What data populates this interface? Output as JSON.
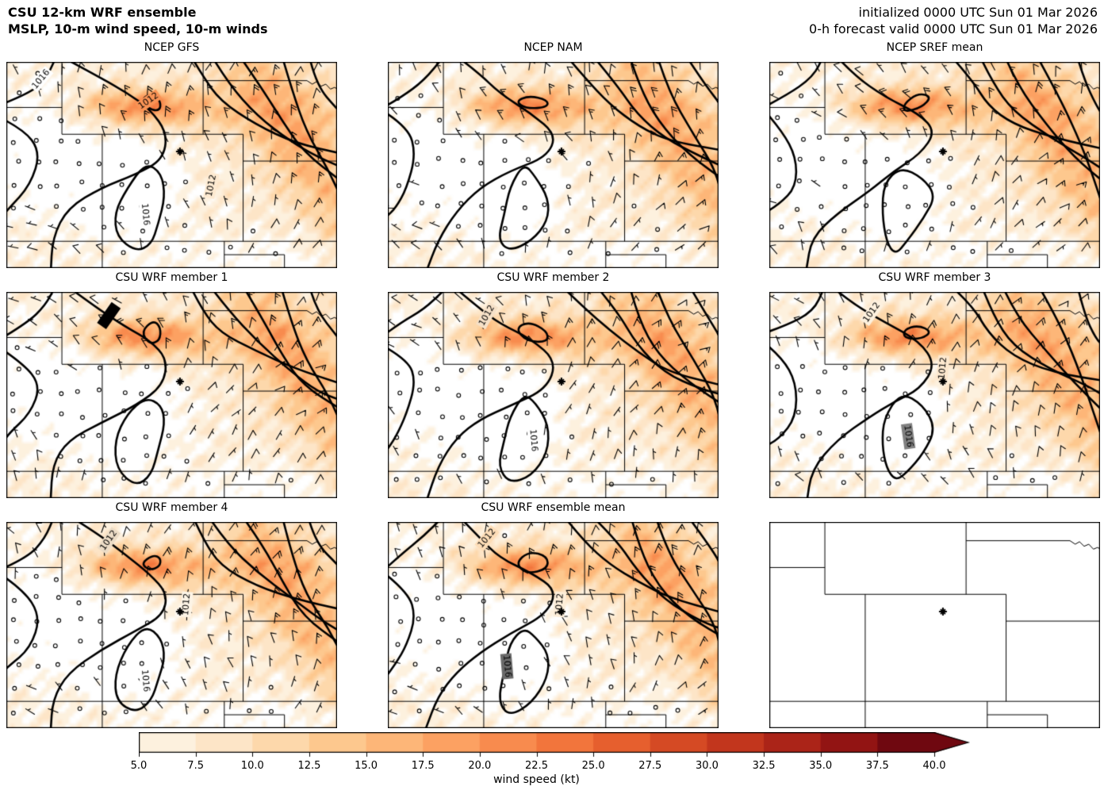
{
  "header": {
    "title_line1": "CSU 12-km WRF ensemble",
    "title_line2": "MSLP, 10-m wind speed, 10-m winds",
    "init_line": "initialized 0000 UTC Sun 01 Mar 2026",
    "valid_line": "0-h forecast valid 0000 UTC Sun 01 Mar 2026"
  },
  "chart_data": {
    "type": "heatmap",
    "subtype": "ensemble-forecast-map-grid",
    "grid": {
      "rows": 3,
      "cols": 3
    },
    "panels": [
      {
        "title": "NCEP GFS",
        "blank": false,
        "seed": 1,
        "labels": [
          {
            "t": "1016",
            "x": 0.105,
            "y": 0.085,
            "r": -50
          },
          {
            "t": "1012",
            "x": 0.43,
            "y": 0.19,
            "r": -35
          },
          {
            "t": "1012",
            "x": 0.62,
            "y": 0.6,
            "r": -78
          },
          {
            "t": "1016",
            "x": 0.42,
            "y": 0.74,
            "r": 85
          }
        ]
      },
      {
        "title": "NCEP NAM",
        "blank": false,
        "seed": 2,
        "labels": []
      },
      {
        "title": "NCEP SREF mean",
        "blank": false,
        "seed": 3,
        "labels": []
      },
      {
        "title": "CSU WRF member 1",
        "blank": false,
        "seed": 4,
        "labels": [
          {
            "t": "1012",
            "x": 0.31,
            "y": 0.115,
            "r": -55
          }
        ]
      },
      {
        "title": "CSU WRF member 2",
        "blank": false,
        "seed": 5,
        "labels": [
          {
            "t": "1012",
            "x": 0.3,
            "y": 0.115,
            "r": -60
          },
          {
            "t": "1016",
            "x": 0.44,
            "y": 0.72,
            "r": 85
          }
        ]
      },
      {
        "title": "CSU WRF member 3",
        "blank": false,
        "seed": 6,
        "labels": [
          {
            "t": "1012",
            "x": 0.31,
            "y": 0.1,
            "r": -55
          },
          {
            "t": "1012",
            "x": 0.525,
            "y": 0.37,
            "r": -85
          },
          {
            "t": "1016",
            "x": 0.42,
            "y": 0.7,
            "r": 82
          }
        ]
      },
      {
        "title": "CSU WRF member 4",
        "blank": false,
        "seed": 7,
        "labels": [
          {
            "t": "1012",
            "x": 0.31,
            "y": 0.09,
            "r": -55
          },
          {
            "t": "1012",
            "x": 0.545,
            "y": 0.4,
            "r": -85
          },
          {
            "t": "1016",
            "x": 0.42,
            "y": 0.77,
            "r": 85
          }
        ]
      },
      {
        "title": "CSU WRF ensemble mean",
        "blank": false,
        "seed": 8,
        "labels": [
          {
            "t": "1012",
            "x": 0.3,
            "y": 0.08,
            "r": -50
          },
          {
            "t": "1012",
            "x": 0.52,
            "y": 0.4,
            "r": -85
          },
          {
            "t": "1016",
            "x": 0.36,
            "y": 0.7,
            "r": 85
          }
        ]
      },
      {
        "title": "",
        "blank": true,
        "seed": 9,
        "labels": []
      }
    ],
    "isobar_values_visible": [
      "1012",
      "1016"
    ],
    "marker": {
      "symbol": "+",
      "x": 0.525,
      "y": 0.435
    },
    "colorbar": {
      "label": "wind speed (kt)",
      "min": 5,
      "max": 40,
      "interval": 2.5,
      "extend": "max",
      "ticks": [
        "5.0",
        "7.5",
        "10.0",
        "12.5",
        "15.0",
        "17.5",
        "20.0",
        "22.5",
        "25.0",
        "27.5",
        "30.0",
        "32.5",
        "35.0",
        "37.5",
        "40.0"
      ],
      "colors": [
        "#fdf1de",
        "#fde5c7",
        "#fdd8ab",
        "#fdc88e",
        "#fdb678",
        "#fca162",
        "#f88b4e",
        "#f2753c",
        "#e65f2e",
        "#d54a24",
        "#c2361d",
        "#ab2418",
        "#921413",
        "#6f0810"
      ]
    },
    "map": {
      "borders": [
        [
          [
            0.168,
            0
          ],
          [
            0.168,
            0.351
          ]
        ],
        [
          [
            0,
            0.221
          ],
          [
            0.168,
            0.221
          ]
        ],
        [
          [
            0.168,
            0.351
          ],
          [
            0.716,
            0.351
          ]
        ],
        [
          [
            0.29,
            0.351
          ],
          [
            0.29,
            1.0
          ]
        ],
        [
          [
            0.595,
            0
          ],
          [
            0.595,
            0.351
          ]
        ],
        [
          [
            0.595,
            0.091
          ],
          [
            0.909,
            0.091
          ]
        ],
        [
          [
            0.909,
            0.091
          ],
          [
            0.925,
            0.108
          ],
          [
            0.938,
            0.096
          ],
          [
            0.952,
            0.118
          ],
          [
            0.966,
            0.108
          ],
          [
            0.98,
            0.132
          ],
          [
            0.992,
            0.124
          ],
          [
            1.0,
            0.13
          ]
        ],
        [
          [
            0.716,
            0.351
          ],
          [
            0.716,
            0.87
          ]
        ],
        [
          [
            0.716,
            0.481
          ],
          [
            1.0,
            0.481
          ]
        ],
        [
          [
            0,
            0.87
          ],
          [
            1.0,
            0.87
          ]
        ],
        [
          [
            0.659,
            0.87
          ],
          [
            0.659,
            1.0
          ]
        ],
        [
          [
            0.659,
            0.935
          ],
          [
            0.841,
            0.935
          ]
        ],
        [
          [
            0.841,
            0.935
          ],
          [
            0.841,
            1.0
          ]
        ]
      ],
      "isobars": [
        {
          "pts": [
            [
              0.55,
              -0.02
            ],
            [
              0.6,
              0.08
            ],
            [
              0.66,
              0.2
            ],
            [
              0.75,
              0.3
            ],
            [
              0.86,
              0.38
            ],
            [
              1.02,
              0.44
            ]
          ],
          "closed": false
        },
        {
          "pts": [
            [
              0.63,
              -0.02
            ],
            [
              0.68,
              0.1
            ],
            [
              0.75,
              0.25
            ],
            [
              0.85,
              0.38
            ],
            [
              0.95,
              0.47
            ],
            [
              1.02,
              0.52
            ]
          ],
          "closed": false
        },
        {
          "pts": [
            [
              0.72,
              -0.02
            ],
            [
              0.76,
              0.12
            ],
            [
              0.83,
              0.3
            ],
            [
              0.91,
              0.45
            ],
            [
              1.02,
              0.58
            ]
          ],
          "closed": false
        },
        {
          "pts": [
            [
              0.82,
              -0.02
            ],
            [
              0.86,
              0.14
            ],
            [
              0.92,
              0.34
            ],
            [
              0.98,
              0.52
            ],
            [
              1.02,
              0.72
            ]
          ],
          "closed": false
        },
        {
          "pts": [
            [
              0.92,
              -0.02
            ],
            [
              0.95,
              0.1
            ],
            [
              1.0,
              0.22
            ],
            [
              1.02,
              0.28
            ]
          ],
          "closed": false
        },
        {
          "pts": [
            [
              0.2,
              -0.02
            ],
            [
              0.27,
              0.07
            ],
            [
              0.35,
              0.16
            ],
            [
              0.44,
              0.24
            ],
            [
              0.5,
              0.34
            ],
            [
              0.47,
              0.46
            ],
            [
              0.38,
              0.54
            ],
            [
              0.29,
              0.62
            ],
            [
              0.2,
              0.72
            ],
            [
              0.14,
              0.85
            ],
            [
              0.12,
              1.02
            ]
          ],
          "closed": false
        },
        {
          "pts": [
            [
              0.41,
              0.5
            ],
            [
              0.46,
              0.55
            ],
            [
              0.49,
              0.65
            ],
            [
              0.47,
              0.77
            ],
            [
              0.43,
              0.88
            ],
            [
              0.38,
              0.93
            ],
            [
              0.34,
              0.86
            ],
            [
              0.34,
              0.73
            ],
            [
              0.36,
              0.6
            ]
          ],
          "closed": true
        },
        {
          "pts": [
            [
              0.44,
              0.15
            ],
            [
              0.48,
              0.18
            ],
            [
              0.47,
              0.23
            ],
            [
              0.42,
              0.24
            ],
            [
              0.4,
              0.19
            ]
          ],
          "closed": true
        },
        {
          "pts": [
            [
              -0.02,
              0.25
            ],
            [
              0.05,
              0.33
            ],
            [
              0.09,
              0.45
            ],
            [
              0.07,
              0.6
            ],
            [
              0.02,
              0.7
            ],
            [
              -0.02,
              0.76
            ]
          ],
          "closed": false
        },
        {
          "pts": [
            [
              -0.02,
              0.22
            ],
            [
              0.05,
              0.16
            ],
            [
              0.12,
              0.08
            ],
            [
              0.16,
              -0.02
            ]
          ],
          "closed": false
        }
      ]
    }
  }
}
